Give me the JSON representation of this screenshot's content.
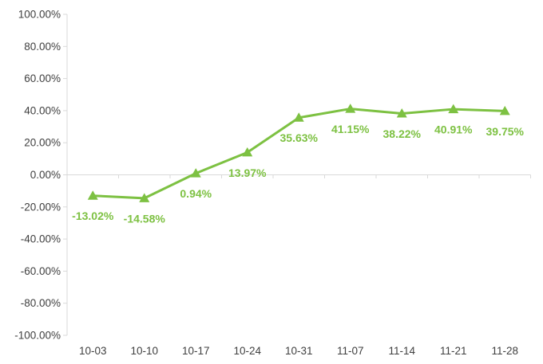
{
  "chart_data": {
    "type": "line",
    "title": "",
    "xlabel": "",
    "ylabel": "",
    "categories": [
      "10-03",
      "10-10",
      "10-17",
      "10-24",
      "10-31",
      "11-07",
      "11-14",
      "11-21",
      "11-28"
    ],
    "series": [
      {
        "name": "series-1",
        "values": [
          -13.02,
          -14.58,
          0.94,
          13.97,
          35.63,
          41.15,
          38.22,
          40.91,
          39.75
        ],
        "data_labels": [
          "-13.02%",
          "-14.58%",
          "0.94%",
          "13.97%",
          "35.63%",
          "41.15%",
          "38.22%",
          "40.91%",
          "39.75%"
        ]
      }
    ],
    "ylim": [
      -100,
      100
    ],
    "y_tick_step": 20,
    "y_tick_labels": [
      "100.00%",
      "80.00%",
      "60.00%",
      "40.00%",
      "20.00%",
      "0.00%",
      "-20.00%",
      "-40.00%",
      "-60.00%",
      "-80.00%",
      "-100.00%"
    ],
    "grid": false,
    "legend": "none",
    "marker": "triangle",
    "data_label_position": "below",
    "x_label_position": "bottom",
    "colors": {
      "series": "#7DC142",
      "data_label": "#7DC142",
      "axis_line": "#D9D9D9",
      "tick_label": "#404040",
      "background": "#FFFFFF"
    }
  }
}
